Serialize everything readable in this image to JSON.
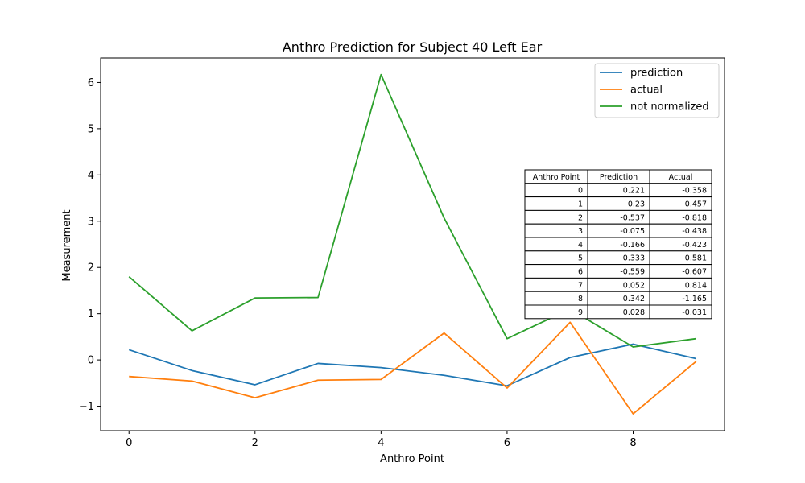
{
  "chart_data": {
    "type": "line",
    "title": "Anthro Prediction for Subject 40 Left Ear",
    "xlabel": "Anthro Point",
    "ylabel": "Measurement",
    "xlim": [
      -0.45,
      9.45
    ],
    "ylim": [
      -1.53,
      6.53
    ],
    "xticks": [
      0,
      2,
      4,
      6,
      8
    ],
    "yticks": [
      -1,
      0,
      1,
      2,
      3,
      4,
      5,
      6
    ],
    "ytick_labels": [
      "−1",
      "0",
      "1",
      "2",
      "3",
      "4",
      "5",
      "6"
    ],
    "grid": false,
    "legend_position": "top-right",
    "x": [
      0,
      1,
      2,
      3,
      4,
      5,
      6,
      7,
      8,
      9
    ],
    "series": [
      {
        "name": "prediction",
        "color": "#1f77b4",
        "values": [
          0.221,
          -0.23,
          -0.537,
          -0.075,
          -0.166,
          -0.333,
          -0.559,
          0.052,
          0.342,
          0.028
        ]
      },
      {
        "name": "actual",
        "color": "#ff7f0e",
        "values": [
          -0.358,
          -0.457,
          -0.818,
          -0.438,
          -0.423,
          0.581,
          -0.607,
          0.814,
          -1.165,
          -0.031
        ]
      },
      {
        "name": "not normalized",
        "color": "#2ca02c",
        "values": [
          1.8,
          0.63,
          1.34,
          1.35,
          6.17,
          3.07,
          0.46,
          1.1,
          0.28,
          0.46
        ]
      }
    ],
    "table": {
      "columns": [
        "Anthro Point",
        "Prediction",
        "Actual"
      ],
      "rows": [
        [
          "0",
          "0.221",
          "-0.358"
        ],
        [
          "1",
          "-0.23",
          "-0.457"
        ],
        [
          "2",
          "-0.537",
          "-0.818"
        ],
        [
          "3",
          "-0.075",
          "-0.438"
        ],
        [
          "4",
          "-0.166",
          "-0.423"
        ],
        [
          "5",
          "-0.333",
          "0.581"
        ],
        [
          "6",
          "-0.559",
          "-0.607"
        ],
        [
          "7",
          "0.052",
          "0.814"
        ],
        [
          "8",
          "0.342",
          "-1.165"
        ],
        [
          "9",
          "0.028",
          "-0.031"
        ]
      ]
    }
  }
}
